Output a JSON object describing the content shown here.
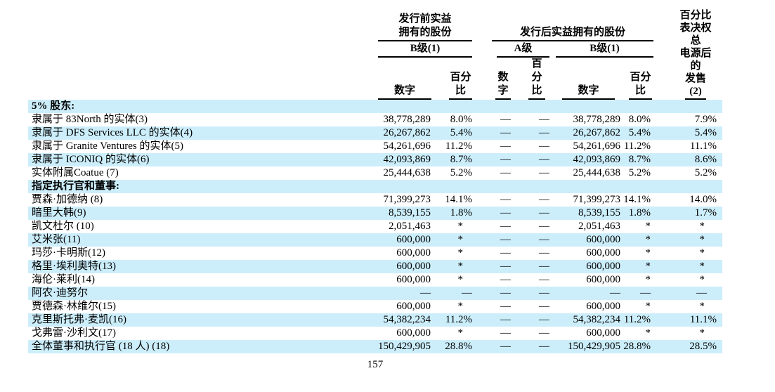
{
  "colors": {
    "row_stripe": "#cceefb",
    "text": "#000000",
    "background": "#ffffff"
  },
  "table": {
    "header": {
      "pre_group": {
        "title_lines": [
          "发行前实益",
          "拥有的股份"
        ],
        "subgroup_b": "B级(1)"
      },
      "post_group": {
        "title": "发行后实益拥有的股份",
        "subgroup_a": "A级",
        "subgroup_b": "B级(1)"
      },
      "voting_col": {
        "lines": [
          "百分比",
          "表决权",
          "总",
          "电源后",
          "的",
          "发售",
          "(2)"
        ]
      },
      "col_number": "数字",
      "col_percent": [
        "百分",
        "比"
      ],
      "col_number_stacked": [
        "数",
        "字"
      ],
      "col_percent_stacked": [
        "百",
        "分",
        "比"
      ]
    },
    "rows": [
      {
        "label": "5% 股东:",
        "section": true,
        "cells": [
          "",
          "",
          "",
          "",
          "",
          "",
          ""
        ]
      },
      {
        "label": "隶属于 83North 的实体(3)",
        "cells": [
          "38,778,289",
          "8.0%",
          "—",
          "—",
          "38,778,289",
          "8.0%",
          "7.9%"
        ]
      },
      {
        "label": "隶属于 DFS Services LLC 的实体(4)",
        "cells": [
          "26,267,862",
          "5.4%",
          "—",
          "—",
          "26,267,862",
          "5.4%",
          "5.4%"
        ]
      },
      {
        "label": "隶属于 Granite Ventures 的实体(5)",
        "cells": [
          "54,261,696",
          "11.2%",
          "—",
          "—",
          "54,261,696",
          "11.2%",
          "11.1%"
        ]
      },
      {
        "label": "隶属于 ICONIQ 的实体(6)",
        "cells": [
          "42,093,869",
          "8.7%",
          "—",
          "—",
          "42,093,869",
          "8.7%",
          "8.6%"
        ]
      },
      {
        "label": "实体附属Coatue (7)",
        "cells": [
          "25,444,638",
          "5.2%",
          "—",
          "—",
          "25,444,638",
          "5.2%",
          "5.2%"
        ]
      },
      {
        "label": "指定执行官和董事:",
        "section": true,
        "cells": [
          "",
          "",
          "",
          "",
          "",
          "",
          ""
        ]
      },
      {
        "label": "贾森·加德纳 (8)",
        "cells": [
          "71,399,273",
          "14.1%",
          "—",
          "—",
          "71,399,273",
          "14.1%",
          "14.0%"
        ]
      },
      {
        "label": "暗里大韩(9)",
        "cells": [
          "8,539,155",
          "1.8%",
          "—",
          "—",
          "8,539,155",
          "1.8%",
          "1.7%"
        ]
      },
      {
        "label": "凯文杜尔 (10)",
        "cells": [
          "2,051,463",
          "*",
          "—",
          "—",
          "2,051,463",
          "*",
          "*"
        ]
      },
      {
        "label": "艾米张(11)",
        "cells": [
          "600,000",
          "*",
          "—",
          "—",
          "600,000",
          "*",
          "*"
        ]
      },
      {
        "label": "玛莎·卡明斯(12)",
        "cells": [
          "600,000",
          "*",
          "—",
          "—",
          "600,000",
          "*",
          "*"
        ]
      },
      {
        "label": "格里·埃利奥特(13)",
        "cells": [
          "600,000",
          "*",
          "—",
          "—",
          "600,000",
          "*",
          "*"
        ]
      },
      {
        "label": "海伦·莱利(14)",
        "cells": [
          "600,000",
          "*",
          "—",
          "—",
          "600,000",
          "*",
          "*"
        ]
      },
      {
        "label": "阿农·迪努尔",
        "cells": [
          "—",
          "—",
          "—",
          "—",
          "—",
          "—",
          "—"
        ]
      },
      {
        "label": "贾德森·林维尔(15)",
        "cells": [
          "600,000",
          "*",
          "—",
          "—",
          "600,000",
          "*",
          "*"
        ]
      },
      {
        "label": "克里斯托弗·麦凯(16)",
        "cells": [
          "54,382,234",
          "11.2%",
          "—",
          "—",
          "54,382,234",
          "11.2%",
          "11.1%"
        ]
      },
      {
        "label": "戈弗雷·沙利文(17)",
        "cells": [
          "600,000",
          "*",
          "—",
          "—",
          "600,000",
          "*",
          "*"
        ]
      },
      {
        "label": "全体董事和执行官 (18 人) (18)",
        "cells": [
          "150,429,905",
          "28.8%",
          "—",
          "—",
          "150,429,905",
          "28.8%",
          "28.5%"
        ]
      }
    ]
  },
  "footer": {
    "page_number": "157"
  }
}
